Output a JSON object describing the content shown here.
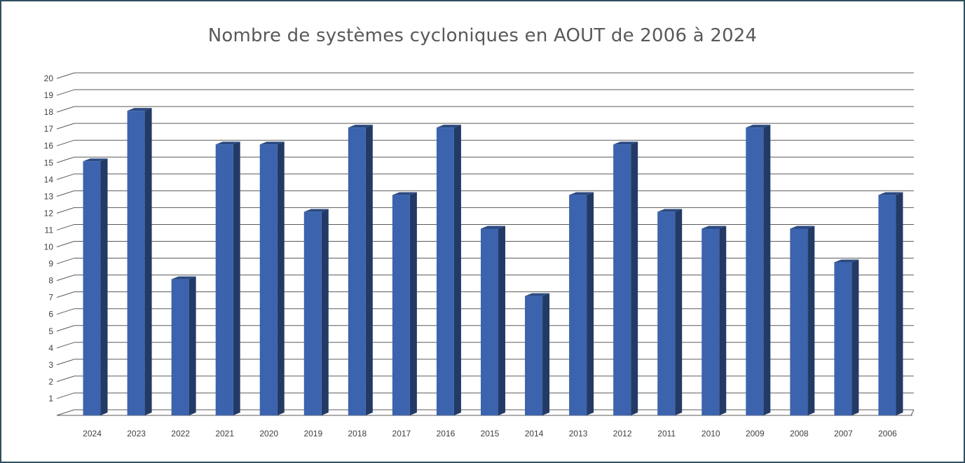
{
  "chart_data": {
    "type": "bar",
    "title": "Nombre de systèmes cycloniques en AOUT de 2006 à 2024",
    "xlabel": "",
    "ylabel": "",
    "categories": [
      "2024",
      "2023",
      "2022",
      "2021",
      "2020",
      "2019",
      "2018",
      "2017",
      "2016",
      "2015",
      "2014",
      "2013",
      "2012",
      "2011",
      "2010",
      "2009",
      "2008",
      "2007",
      "2006"
    ],
    "values": [
      15,
      18,
      8,
      16,
      16,
      12,
      17,
      13,
      17,
      11,
      7,
      13,
      16,
      12,
      11,
      17,
      11,
      9,
      13
    ],
    "ylim": [
      0,
      20
    ],
    "yticks": [
      "1",
      "2",
      "3",
      "4",
      "5",
      "6",
      "7",
      "8",
      "9",
      "10",
      "11",
      "12",
      "13",
      "14",
      "15",
      "16",
      "17",
      "18",
      "19",
      "20"
    ],
    "grid": true,
    "legend": "none",
    "style": "3d-column",
    "colors": {
      "bar_front": "#3c63ad",
      "bar_side": "#233a66",
      "bar_top": "#2c4a82",
      "grid": "#5a5a5a",
      "title": "#595959",
      "frame": "#2f4f5f"
    }
  }
}
